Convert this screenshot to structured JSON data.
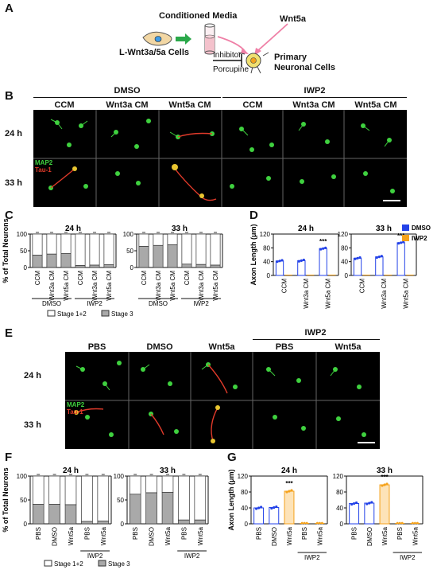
{
  "panel_a": {
    "label": "A",
    "conditioned_media": "Conditioned Media",
    "wnt5a": "Wnt5a",
    "cells": "L-Wnt3a/5a Cells",
    "inhibitor": "Inhibitor",
    "porcupine": "Porcupine",
    "primary_line1": "Primary",
    "primary_line2": "Neuronal Cells"
  },
  "panel_b": {
    "label": "B",
    "groups": [
      "DMSO",
      "IWP2"
    ],
    "columns": [
      "CCM",
      "Wnt3a CM",
      "Wnt5a CM",
      "CCM",
      "Wnt3a CM",
      "Wnt5a CM"
    ],
    "rows": [
      "24 h",
      "33 h"
    ],
    "stain_green": "MAP2",
    "stain_red": "Tau-1"
  },
  "panel_e": {
    "label": "E",
    "group": "IWP2",
    "columns": [
      "PBS",
      "DMSO",
      "Wnt5a",
      "PBS",
      "Wnt5a"
    ],
    "rows": [
      "24 h",
      "33 h"
    ],
    "stain_green": "MAP2",
    "stain_red": "Tau-1"
  },
  "legend_stage": {
    "stage12": "Stage 1+2",
    "stage3": "Stage 3"
  },
  "legend_drug": {
    "dmso": "DMSO",
    "iwp2": "IWP2",
    "dmso_color": "#2342e8",
    "iwp2_color": "#f5a21b"
  },
  "chart_data": [
    {
      "id": "C",
      "type": "bar",
      "label": "C",
      "ylabel": "% of Total Neurons",
      "ylim": [
        0,
        100
      ],
      "yticks": [
        0,
        50,
        100
      ],
      "panels": [
        {
          "title": "24 h",
          "categories": [
            "CCM",
            "Wnt3a CM",
            "Wnt5a CM",
            "CCM",
            "Wnt3a CM",
            "Wnt5a CM"
          ],
          "stage3": [
            37,
            40,
            42,
            6,
            7,
            8
          ],
          "total": [
            100,
            100,
            100,
            100,
            100,
            100
          ]
        },
        {
          "title": "33 h",
          "categories": [
            "CCM",
            "Wnt3a CM",
            "Wnt5a CM",
            "CCM",
            "Wnt3a CM",
            "Wnt5a CM"
          ],
          "stage3": [
            63,
            66,
            68,
            10,
            9,
            7
          ],
          "total": [
            100,
            100,
            100,
            100,
            100,
            100
          ]
        }
      ],
      "groups": [
        {
          "name": "DMSO",
          "span": [
            0,
            2
          ]
        },
        {
          "name": "IWP2",
          "span": [
            3,
            5
          ]
        }
      ]
    },
    {
      "id": "D",
      "type": "bar",
      "label": "D",
      "ylabel": "Axon Length (μm)",
      "ylim": [
        0,
        120
      ],
      "yticks": [
        0,
        40,
        80,
        120
      ],
      "panels": [
        {
          "title": "24 h",
          "categories": [
            "CCM",
            "Wnt3a CM",
            "Wnt5a CM"
          ],
          "dmso": [
            42,
            43,
            78
          ],
          "iwp2": [
            0,
            0,
            0
          ],
          "signif": "***",
          "signif_index": 2
        },
        {
          "title": "33 h",
          "categories": [
            "CCM",
            "Wnt3a CM",
            "Wnt5a CM"
          ],
          "dmso": [
            50,
            54,
            95
          ],
          "iwp2": [
            0,
            0,
            0
          ],
          "signif": "***",
          "signif_index": 2
        }
      ]
    },
    {
      "id": "F",
      "type": "bar",
      "label": "F",
      "ylabel": "% of Total Neurons",
      "ylim": [
        0,
        100
      ],
      "yticks": [
        0,
        50,
        100
      ],
      "panels": [
        {
          "title": "24 h",
          "categories": [
            "PBS",
            "DMSO",
            "Wnt5a",
            "PBS",
            "Wnt5a"
          ],
          "stage3": [
            41,
            41,
            40,
            5,
            6
          ],
          "total": [
            100,
            100,
            100,
            100,
            100
          ]
        },
        {
          "title": "33 h",
          "categories": [
            "PBS",
            "DMSO",
            "Wnt5a",
            "PBS",
            "Wnt5a"
          ],
          "stage3": [
            62,
            65,
            66,
            8,
            8
          ],
          "total": [
            100,
            100,
            100,
            100,
            100
          ]
        }
      ],
      "groups": [
        {
          "name": "IWP2",
          "span": [
            3,
            4
          ]
        }
      ]
    },
    {
      "id": "G",
      "type": "bar",
      "label": "G",
      "ylabel": "Axon Length (μm)",
      "ylim": [
        0,
        120
      ],
      "yticks": [
        0,
        40,
        80,
        120
      ],
      "panels": [
        {
          "title": "24 h",
          "categories": [
            "PBS",
            "DMSO",
            "Wnt5a",
            "PBS",
            "Wnt5a"
          ],
          "values": [
            40,
            41,
            82,
            0,
            0
          ],
          "signif": "***",
          "signif_index": 2
        },
        {
          "title": "33 h",
          "categories": [
            "PBS",
            "DMSO",
            "Wnt5a",
            "PBS",
            "Wnt5a"
          ],
          "values": [
            51,
            52,
            98,
            0,
            0
          ],
          "signif": "***",
          "signif_index": 2
        }
      ],
      "groups": [
        {
          "name": "IWP2",
          "span": [
            3,
            4
          ]
        }
      ]
    }
  ]
}
